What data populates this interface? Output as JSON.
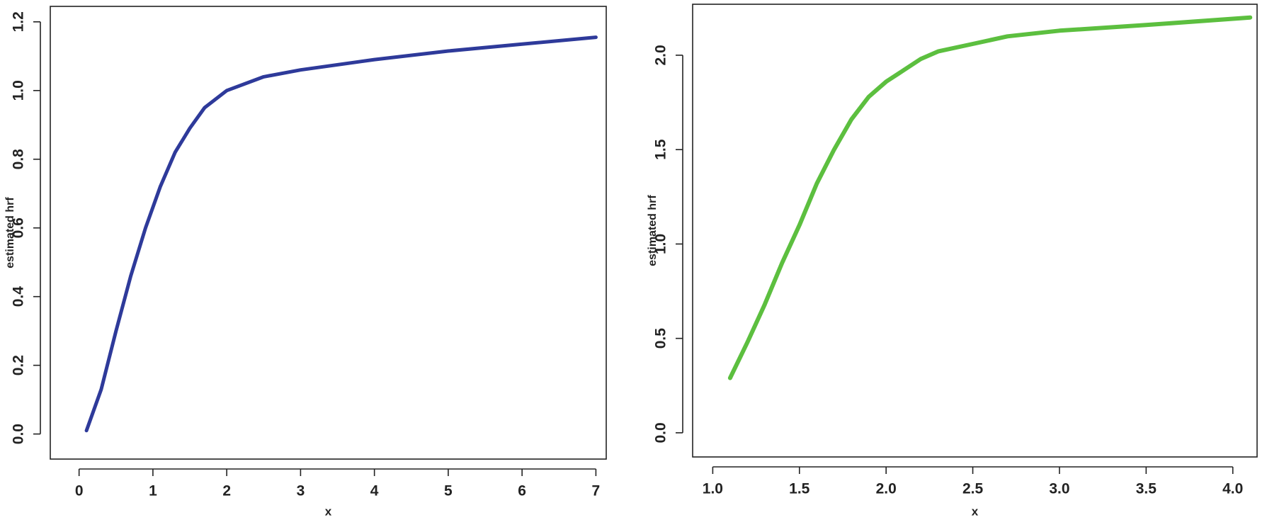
{
  "chart_data": [
    {
      "type": "line",
      "x_label": "x",
      "y_label": "estimated hrf",
      "x": [
        0.1,
        0.3,
        0.5,
        0.7,
        0.9,
        1.1,
        1.3,
        1.5,
        1.7,
        2.0,
        2.5,
        3.0,
        4.0,
        5.0,
        6.0,
        7.0
      ],
      "series": [
        {
          "color": "#2e3a9a",
          "values": [
            0.01,
            0.13,
            0.3,
            0.46,
            0.6,
            0.72,
            0.82,
            0.89,
            0.95,
            1.0,
            1.04,
            1.06,
            1.09,
            1.115,
            1.135,
            1.155
          ]
        }
      ],
      "xlim": [
        -0.39,
        7.14
      ],
      "ylim": [
        -0.073,
        1.245
      ],
      "xticks": [
        0,
        1,
        2,
        3,
        4,
        5,
        6,
        7
      ],
      "yticks": [
        {
          "value": 0,
          "label": "0.0"
        },
        0.2,
        0.4,
        0.6,
        0.8,
        {
          "value": 1,
          "label": "1.0"
        },
        1.2
      ]
    },
    {
      "type": "line",
      "x_label": "x",
      "y_label": "estimated hrf",
      "x": [
        1.1,
        1.2,
        1.3,
        1.4,
        1.5,
        1.6,
        1.7,
        1.8,
        1.9,
        2.0,
        2.1,
        2.2,
        2.3,
        2.5,
        2.7,
        3.0,
        3.5,
        4.1
      ],
      "series": [
        {
          "color": "#5cbf3f",
          "values": [
            0.29,
            0.48,
            0.68,
            0.9,
            1.1,
            1.32,
            1.5,
            1.66,
            1.78,
            1.86,
            1.92,
            1.98,
            2.02,
            2.06,
            2.1,
            2.13,
            2.16,
            2.2
          ]
        }
      ],
      "xlim": [
        0.884,
        4.14
      ],
      "ylim": [
        -0.128,
        2.27
      ],
      "xticks": [
        {
          "value": 1,
          "label": "1.0"
        },
        1.5,
        {
          "value": 2,
          "label": "2.0"
        },
        2.5,
        {
          "value": 3,
          "label": "3.0"
        },
        3.5,
        {
          "value": 4,
          "label": "4.0"
        }
      ],
      "yticks": [
        {
          "value": 0,
          "label": "0.0"
        },
        0.5,
        {
          "value": 1,
          "label": "1.0"
        },
        1.5,
        {
          "value": 2,
          "label": "2.0"
        }
      ]
    }
  ]
}
